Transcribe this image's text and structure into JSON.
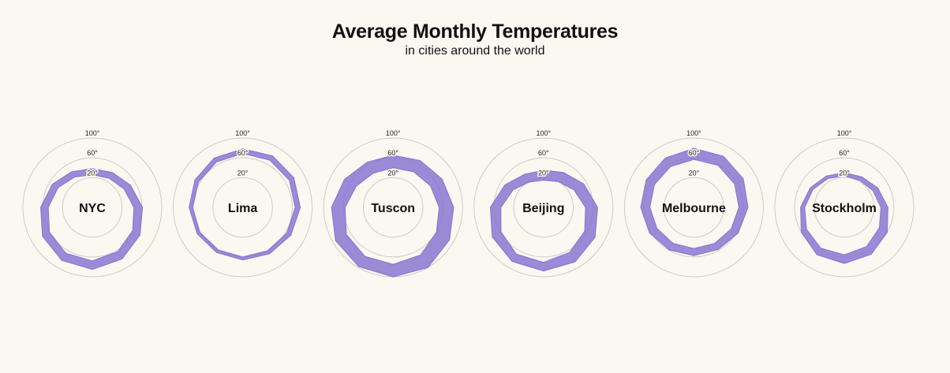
{
  "title": "Average Monthly Temperatures",
  "subtitle": "in cities around the world",
  "colors": {
    "band": "#8a78d2",
    "grid": "#cfcac3",
    "background": "#fbf8f1"
  },
  "chart_data": {
    "type": "radial-area",
    "title": "Average Monthly Temperatures",
    "subtitle": "in cities around the world",
    "rlim": [
      -40,
      100
    ],
    "ring_ticks": [
      20,
      60,
      100
    ],
    "ring_tick_labels": [
      "20°",
      "60°",
      "100°"
    ],
    "months": 12,
    "cities": [
      {
        "name": "NYC",
        "low": [
          26,
          28,
          34,
          44,
          54,
          63,
          68,
          67,
          60,
          49,
          40,
          31
        ],
        "high": [
          38,
          41,
          49,
          61,
          71,
          80,
          85,
          83,
          76,
          64,
          53,
          43
        ]
      },
      {
        "name": "Lima",
        "low": [
          69,
          70,
          69,
          66,
          63,
          61,
          60,
          59,
          60,
          61,
          63,
          66
        ],
        "high": [
          78,
          80,
          79,
          76,
          72,
          68,
          66,
          65,
          66,
          68,
          71,
          75
        ]
      },
      {
        "name": "Tuscon",
        "low": [
          40,
          43,
          47,
          53,
          61,
          71,
          75,
          74,
          69,
          57,
          46,
          40
        ],
        "high": [
          65,
          69,
          74,
          82,
          91,
          100,
          100,
          98,
          94,
          84,
          73,
          65
        ]
      },
      {
        "name": "Beijing",
        "low": [
          15,
          20,
          31,
          45,
          56,
          65,
          71,
          69,
          59,
          46,
          31,
          19
        ],
        "high": [
          35,
          41,
          54,
          69,
          80,
          87,
          88,
          86,
          79,
          67,
          50,
          37
        ]
      },
      {
        "name": "Melbourne",
        "low": [
          57,
          58,
          55,
          51,
          47,
          44,
          43,
          44,
          46,
          49,
          52,
          55
        ],
        "high": [
          79,
          79,
          75,
          69,
          63,
          58,
          57,
          59,
          63,
          67,
          71,
          75
        ]
      },
      {
        "name": "Stockholm",
        "low": [
          24,
          23,
          27,
          34,
          42,
          51,
          56,
          55,
          48,
          40,
          33,
          27
        ],
        "high": [
          30,
          31,
          38,
          48,
          60,
          69,
          73,
          70,
          60,
          48,
          39,
          33
        ]
      }
    ]
  }
}
